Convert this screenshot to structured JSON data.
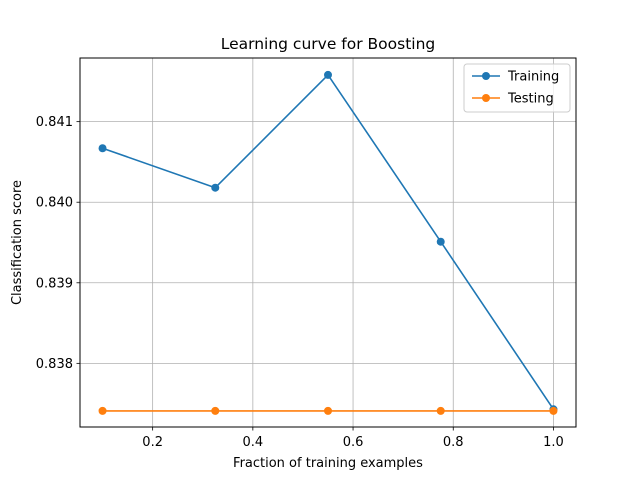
{
  "chart_data": {
    "type": "line",
    "title": "Learning curve for Boosting",
    "xlabel": "Fraction of training examples",
    "ylabel": "Classification score",
    "x": [
      0.1,
      0.325,
      0.55,
      0.775,
      1.0
    ],
    "series": [
      {
        "name": "Training",
        "color": "#1f77b4",
        "values": [
          0.84067,
          0.84018,
          0.84158,
          0.83951,
          0.83743
        ],
        "marker": "circle"
      },
      {
        "name": "Testing",
        "color": "#ff7f0e",
        "values": [
          0.83741,
          0.83741,
          0.83741,
          0.83741,
          0.83741
        ],
        "marker": "circle"
      }
    ],
    "xlim": [
      0.055,
      1.045
    ],
    "ylim": [
      0.83721,
      0.84179
    ],
    "xticks": [
      0.2,
      0.4,
      0.6,
      0.8,
      1.0
    ],
    "xtick_labels": [
      "0.2",
      "0.4",
      "0.6",
      "0.8",
      "1.0"
    ],
    "yticks": [
      0.838,
      0.839,
      0.84,
      0.841
    ],
    "ytick_labels": [
      "0.838",
      "0.839",
      "0.840",
      "0.841"
    ],
    "grid": true,
    "legend_position": "top-right"
  }
}
